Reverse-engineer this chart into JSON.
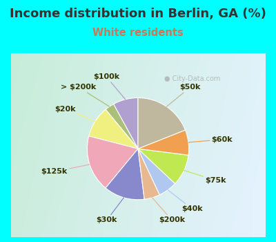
{
  "title": "Income distribution in Berlin, GA (%)",
  "subtitle": "White residents",
  "title_color": "#333333",
  "subtitle_color": "#cc7755",
  "outer_bg": "#00ffff",
  "chart_inner_color": "#d8ede4",
  "watermark": "City-Data.com",
  "labels": [
    "$100k",
    "> $200k",
    "$20k",
    "$125k",
    "$30k",
    "$200k",
    "$40k",
    "$75k",
    "$60k",
    "$50k"
  ],
  "values": [
    8,
    3,
    10,
    18,
    13,
    5,
    6,
    10,
    8,
    19
  ],
  "colors": [
    "#b0a0d0",
    "#aabf78",
    "#f0f080",
    "#f0a8b8",
    "#8888cc",
    "#e8b890",
    "#b0c8f0",
    "#c0e850",
    "#f0a050",
    "#c0b89e"
  ],
  "startangle": 90,
  "label_fontsize": 8,
  "title_fontsize": 13,
  "subtitle_fontsize": 10.5,
  "label_color": "#333300"
}
